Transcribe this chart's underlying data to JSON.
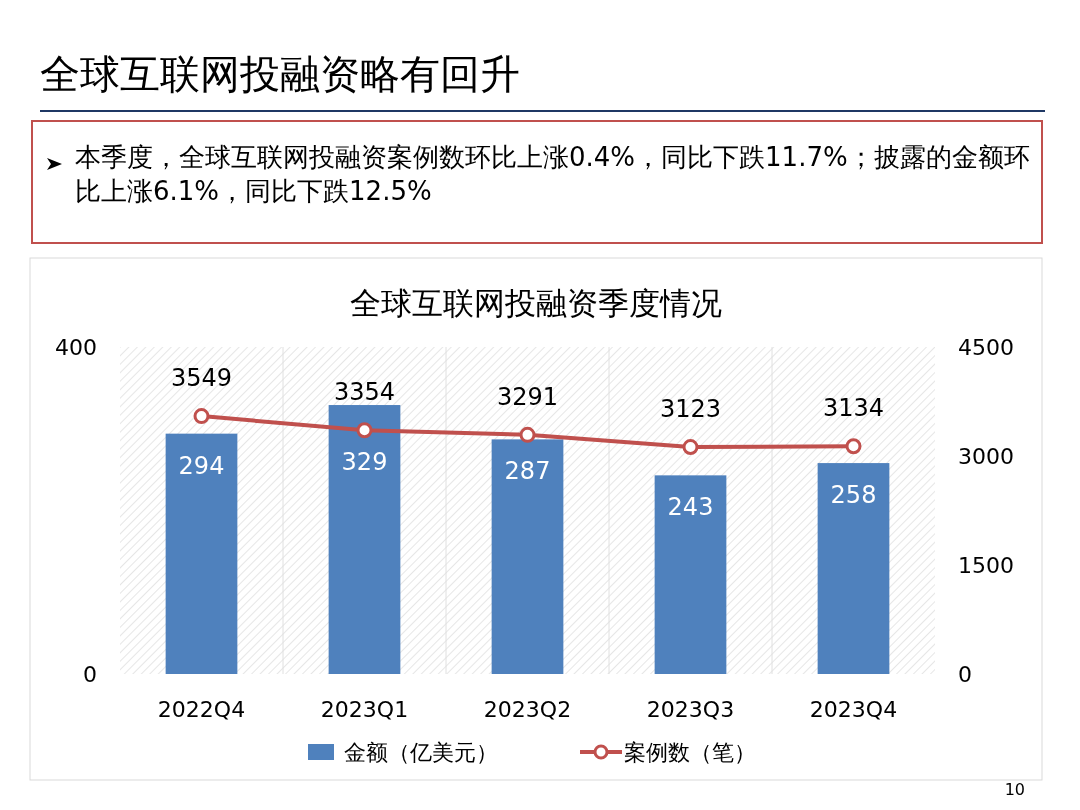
{
  "chart_data": {
    "type": "bar",
    "title": "全球互联网投融资略有回升",
    "subtitle": "全球互联网投融资季度情况",
    "annotations": [
      "本季度，全球互联网投融资案例数环比上涨0.4%，同比下跌11.7%；披露的金额环比上涨6.1%，同比下跌12.5%",
      "10"
    ],
    "categories": [
      "2022Q4",
      "2023Q1",
      "2023Q2",
      "2023Q3",
      "2023Q4"
    ],
    "series": [
      {
        "name": "金额（亿美元）",
        "color": "#4f81bd",
        "values": [
          294,
          329,
          287,
          243,
          258
        ]
      },
      {
        "name": "案例数（笔）",
        "type": "line",
        "axis": "y2",
        "color": "#c0504d",
        "marker": "circle",
        "values": [
          3549,
          3354,
          3291,
          3123,
          3134
        ]
      }
    ],
    "ylim": [
      0,
      400
    ],
    "yticks": [
      0,
      400
    ],
    "y2lim": [
      0,
      4500
    ],
    "y2ticks": [
      0,
      1500,
      3000,
      4500
    ],
    "data_labels": true,
    "legend": "bottom"
  }
}
